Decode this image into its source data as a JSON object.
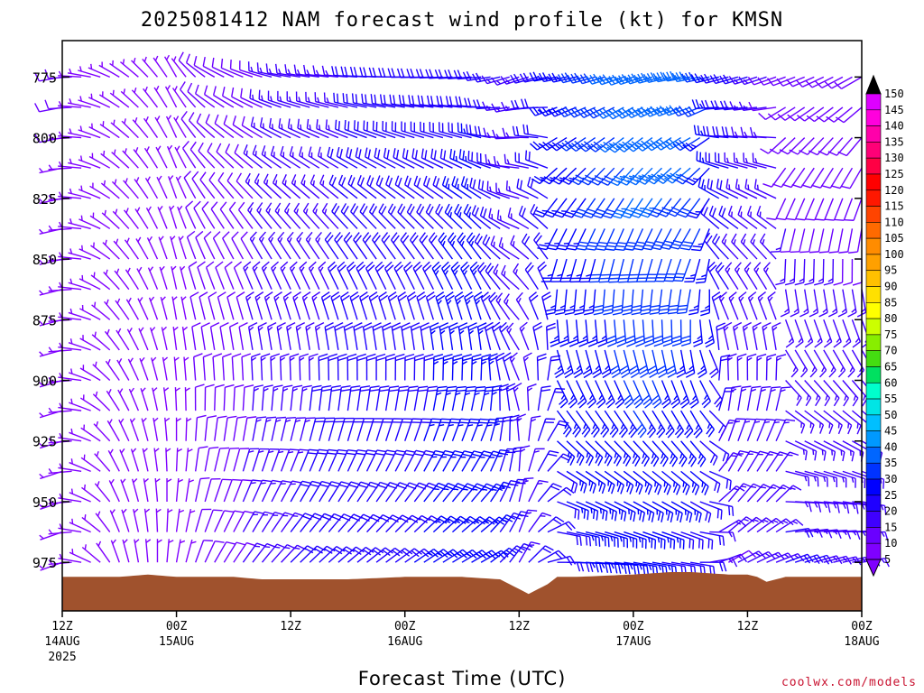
{
  "page": {
    "title": "2025081412 NAM forecast wind profile (kt) for KMSN",
    "xlabel": "Forecast Time (UTC)",
    "footer": "coolwx.com/models"
  },
  "colors": {
    "ground": "#a0522d",
    "frame": "#000000",
    "colorbar": [
      "#7f00ff",
      "#6a00ff",
      "#3f00ff",
      "#1f00ff",
      "#0000ff",
      "#0033ff",
      "#0066ff",
      "#0099ff",
      "#00bfff",
      "#00e5e5",
      "#00ffcc",
      "#00e060",
      "#44dd11",
      "#88ee00",
      "#ccff00",
      "#ffff00",
      "#ffe000",
      "#ffc000",
      "#ffa000",
      "#ff8c00",
      "#ff6a00",
      "#ff4400",
      "#ff1800",
      "#ff0000",
      "#ff0044",
      "#ff0077",
      "#ff00aa",
      "#ff00dd",
      "#dd00ff"
    ]
  },
  "chart_data": {
    "type": "wind-barb-profile",
    "title": "2025081412 NAM forecast wind profile (kt) for KMSN",
    "xlabel": "Forecast Time (UTC)",
    "ylabel": "",
    "units": "kt",
    "yaxis": {
      "ticks": [
        775,
        800,
        825,
        850,
        875,
        900,
        925,
        950,
        975
      ],
      "range_hPa": [
        760,
        995
      ],
      "inverted": true
    },
    "xaxis": {
      "range_hours": [
        0,
        84
      ],
      "ticks": [
        {
          "hour": 0,
          "lines": [
            "12Z",
            "14AUG",
            "2025"
          ]
        },
        {
          "hour": 12,
          "lines": [
            "00Z",
            "15AUG"
          ]
        },
        {
          "hour": 24,
          "lines": [
            "12Z"
          ]
        },
        {
          "hour": 36,
          "lines": [
            "00Z",
            "16AUG"
          ]
        },
        {
          "hour": 48,
          "lines": [
            "12Z"
          ]
        },
        {
          "hour": 60,
          "lines": [
            "00Z",
            "17AUG"
          ]
        },
        {
          "hour": 72,
          "lines": [
            "12Z"
          ]
        },
        {
          "hour": 84,
          "lines": [
            "00Z",
            "18AUG"
          ]
        }
      ]
    },
    "colorbar": {
      "labels": [
        5,
        10,
        15,
        20,
        25,
        30,
        35,
        40,
        45,
        50,
        55,
        60,
        65,
        70,
        75,
        80,
        85,
        90,
        95,
        100,
        105,
        110,
        115,
        120,
        125,
        130,
        135,
        140,
        145,
        150
      ]
    },
    "surface_pressure": {
      "hours": [
        0,
        6,
        9,
        12,
        18,
        21,
        24,
        30,
        36,
        42,
        46,
        48,
        49,
        50,
        51,
        52,
        54,
        60,
        64,
        66,
        70,
        72,
        73,
        74,
        76,
        80,
        84
      ],
      "hPa": [
        981,
        981,
        980,
        981,
        981,
        982,
        982,
        982,
        981,
        981,
        982,
        986,
        988,
        986,
        984,
        981,
        981,
        980,
        979,
        979,
        980,
        980,
        981,
        983,
        981,
        981,
        981
      ]
    },
    "wind": {
      "levels_hPa": [
        775,
        787.5,
        800,
        812.5,
        825,
        837.5,
        850,
        862.5,
        875,
        887.5,
        900,
        912.5,
        925,
        937.5,
        950,
        962.5,
        975
      ],
      "times_hours": [
        0,
        1,
        2,
        3,
        4,
        5,
        6,
        7,
        8,
        9,
        10,
        11,
        12,
        13,
        14,
        15,
        16,
        17,
        18,
        19,
        20,
        21,
        22,
        23,
        24,
        25,
        26,
        27,
        28,
        29,
        30,
        31,
        32,
        33,
        34,
        35,
        36,
        37,
        38,
        39,
        40,
        41,
        42,
        43,
        44,
        45,
        46,
        47,
        48,
        49,
        50,
        51,
        52,
        53,
        54,
        55,
        56,
        57,
        58,
        59,
        60,
        61,
        62,
        63,
        64,
        65,
        66,
        67,
        68,
        69,
        70,
        71,
        72,
        73,
        74,
        75,
        76,
        77,
        78,
        79,
        80,
        81,
        82,
        83,
        84
      ],
      "anchors": [
        {
          "hour": 0,
          "dir_top": 260,
          "dir_low": 250,
          "spd_top": 8,
          "spd_low": 5
        },
        {
          "hour": 6,
          "dir_top": 300,
          "dir_low": 340,
          "spd_top": 6,
          "spd_low": 5
        },
        {
          "hour": 12,
          "dir_top": 330,
          "dir_low": 10,
          "spd_top": 6,
          "spd_low": 6
        },
        {
          "hour": 16,
          "dir_top": 300,
          "dir_low": 30,
          "spd_top": 9,
          "spd_low": 10
        },
        {
          "hour": 24,
          "dir_top": 280,
          "dir_low": 45,
          "spd_top": 14,
          "spd_low": 18
        },
        {
          "hour": 36,
          "dir_top": 270,
          "dir_low": 55,
          "spd_top": 20,
          "spd_low": 22
        },
        {
          "hour": 44,
          "dir_top": 265,
          "dir_low": 60,
          "spd_top": 22,
          "spd_low": 27
        },
        {
          "hour": 48,
          "dir_top": 250,
          "dir_low": 30,
          "spd_top": 14,
          "spd_low": 16
        },
        {
          "hour": 52,
          "dir_top": 260,
          "dir_low": 90,
          "spd_top": 24,
          "spd_low": 22
        },
        {
          "hour": 60,
          "dir_top": 250,
          "dir_low": 100,
          "spd_top": 36,
          "spd_low": 24
        },
        {
          "hour": 66,
          "dir_top": 260,
          "dir_low": 100,
          "spd_top": 36,
          "spd_low": 20
        },
        {
          "hour": 70,
          "dir_top": 255,
          "dir_low": 60,
          "spd_top": 22,
          "spd_low": 12
        },
        {
          "hour": 76,
          "dir_top": 250,
          "dir_low": 70,
          "spd_top": 10,
          "spd_low": 18
        },
        {
          "hour": 84,
          "dir_top": 240,
          "dir_low": 80,
          "spd_top": 10,
          "spd_low": 16
        }
      ]
    }
  }
}
